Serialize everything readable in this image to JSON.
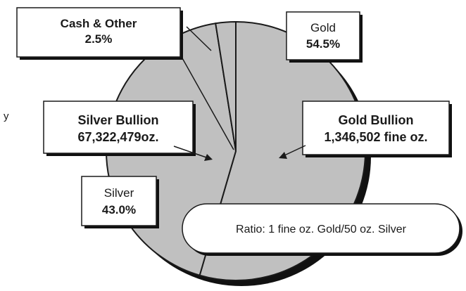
{
  "chart_data": {
    "type": "pie",
    "categories": [
      "Gold",
      "Silver",
      "Cash & Other"
    ],
    "values": [
      54.5,
      43.0,
      2.5
    ],
    "colors": {
      "slice_fill": "#c0c0c0",
      "shadow": "#111111",
      "outline": "#1a1a1a",
      "box_fill": "#ffffff"
    },
    "labels": {
      "gold_name": "Gold",
      "gold_pct": "54.5%",
      "silver_name": "Silver",
      "silver_pct": "43.0%",
      "cash_name": "Cash & Other",
      "cash_pct": "2.5%"
    },
    "annotations": {
      "gold_bullion_title": "Gold Bullion",
      "gold_bullion_amount": "1,346,502 fine oz.",
      "silver_bullion_title": "Silver Bullion",
      "silver_bullion_amount": "67,322,479oz.",
      "ratio": "Ratio: 1 fine oz. Gold/50 oz. Silver"
    },
    "edge_fragment": "y"
  }
}
